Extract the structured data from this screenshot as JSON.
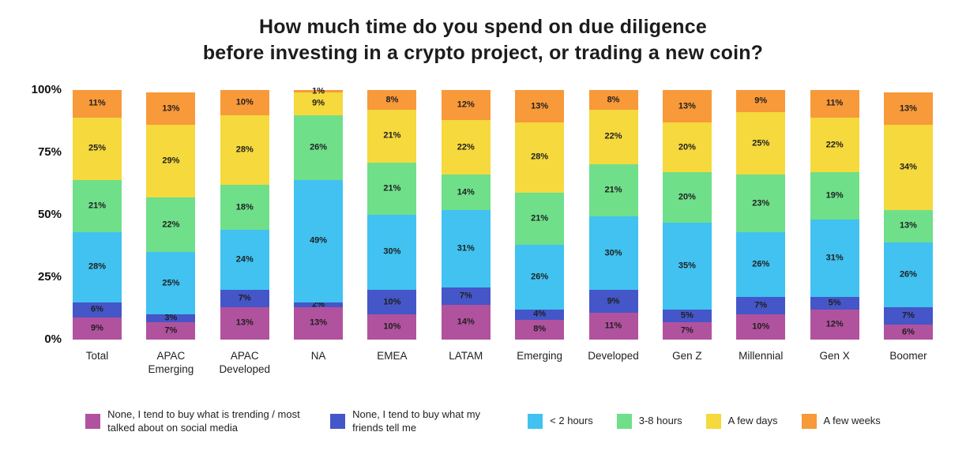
{
  "chart_data": {
    "type": "bar",
    "stacked": true,
    "title": "How much time do you spend on due diligence before investing in a crypto project, or trading a new coin?",
    "title_lines": {
      "0": "How much time do you spend on due diligence",
      "1": "before investing in a crypto project, or trading a new coin?"
    },
    "categories": [
      "Total",
      "APAC Emerging",
      "APAC Developed",
      "NA",
      "EMEA",
      "LATAM",
      "Emerging",
      "Developed",
      "Gen Z",
      "Millennial",
      "Gen X",
      "Boomer"
    ],
    "y_ticks": [
      "100%",
      "75%",
      "50%",
      "25%",
      "0%"
    ],
    "ylim": [
      0,
      100
    ],
    "grid": false,
    "legend_position": "bottom",
    "value_suffix": "%",
    "series": [
      {
        "name": "None, I tend to buy what is trending / most talked about on social media",
        "color": "#b1529e",
        "values": [
          9,
          7,
          13,
          13,
          10,
          14,
          8,
          11,
          7,
          10,
          12,
          6
        ]
      },
      {
        "name": "None, I tend to buy what my friends tell me",
        "color": "#4556c8",
        "values": [
          6,
          3,
          7,
          2,
          10,
          7,
          4,
          9,
          5,
          7,
          5,
          7
        ]
      },
      {
        "name": "< 2 hours",
        "color": "#41c2f1",
        "values": [
          28,
          25,
          24,
          49,
          30,
          31,
          26,
          30,
          35,
          26,
          31,
          26
        ]
      },
      {
        "name": "3-8 hours",
        "color": "#6fdf8a",
        "values": [
          21,
          22,
          18,
          26,
          21,
          14,
          21,
          21,
          20,
          23,
          19,
          13
        ]
      },
      {
        "name": "A few days",
        "color": "#f5d93d",
        "values": [
          25,
          29,
          28,
          9,
          21,
          22,
          28,
          22,
          20,
          25,
          22,
          34
        ]
      },
      {
        "name": "A few weeks",
        "color": "#f8993a",
        "values": [
          11,
          13,
          10,
          1,
          8,
          12,
          13,
          8,
          13,
          9,
          11,
          13
        ]
      }
    ]
  }
}
